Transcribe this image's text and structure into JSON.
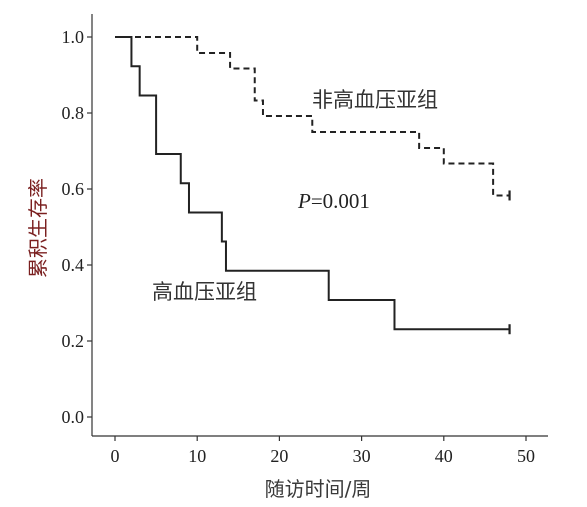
{
  "chart_data": {
    "type": "line",
    "step": true,
    "xlabel": "随访时间/周",
    "ylabel": "累积生存率",
    "xlim": [
      0,
      50
    ],
    "ylim": [
      0,
      1.0
    ],
    "xticks": [
      0,
      10,
      20,
      30,
      40,
      50
    ],
    "yticks": [
      0.0,
      0.2,
      0.4,
      0.6,
      0.8,
      1.0
    ],
    "xtick_labels": [
      "0",
      "10",
      "20",
      "30",
      "40",
      "50"
    ],
    "ytick_labels": [
      "0.0",
      "0.2",
      "0.4",
      "0.6",
      "0.8",
      "1.0"
    ],
    "grid": false,
    "annotation": {
      "p_label": "P",
      "p_value": "=0.001"
    },
    "series": [
      {
        "name": "非高血压亚组",
        "line_style": "dashed",
        "color": "#222222",
        "x": [
          0,
          10,
          14,
          17,
          18,
          24,
          37,
          40,
          46,
          48
        ],
        "y": [
          1.0,
          0.958,
          0.917,
          0.833,
          0.792,
          0.75,
          0.708,
          0.667,
          0.583,
          0.583
        ],
        "censored_x": 48
      },
      {
        "name": "高血压亚组",
        "line_style": "solid",
        "color": "#222222",
        "x": [
          0,
          2,
          3,
          5,
          8,
          9,
          13,
          13.5,
          26,
          34,
          48
        ],
        "y": [
          1.0,
          0.923,
          0.846,
          0.692,
          0.615,
          0.538,
          0.462,
          0.385,
          0.308,
          0.231,
          0.231
        ],
        "censored_x": 48
      }
    ]
  }
}
